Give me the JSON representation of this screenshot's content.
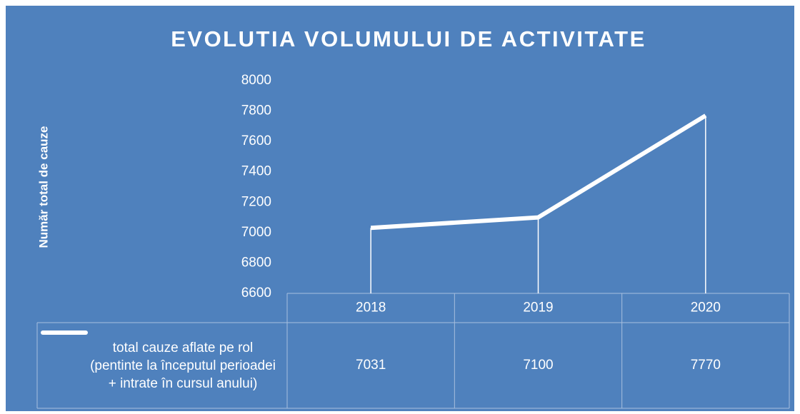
{
  "chart_data": {
    "type": "line",
    "title": "EVOLUTIA VOLUMULUI DE ACTIVITATE",
    "y_label": "Număr total de cauze",
    "categories": [
      "2018",
      "2019",
      "2020"
    ],
    "series": [
      {
        "name": "total cauze aflate pe rol (pentinte la începutul perioadei + intrate în cursul anului)",
        "color": "#ffffff",
        "values": [
          7031,
          7100,
          7770
        ]
      }
    ],
    "ylim": [
      6600,
      8000
    ],
    "yticks": [
      6600,
      6800,
      7000,
      7200,
      7400,
      7600,
      7800,
      8000
    ],
    "data_table": true
  }
}
